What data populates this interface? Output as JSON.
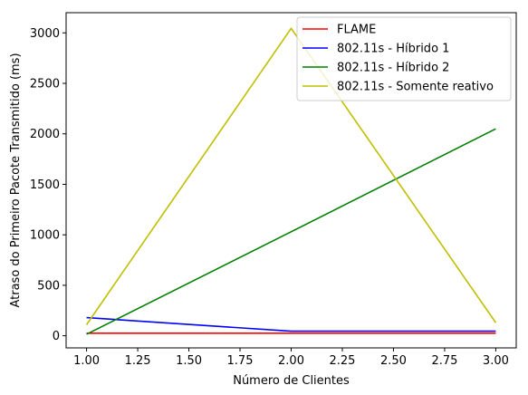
{
  "chart_data": {
    "type": "line",
    "xlabel": "Número de Clientes",
    "ylabel": "Atraso do Primeiro Pacote Transmitido (ms)",
    "xlim": [
      0.9,
      3.1
    ],
    "ylim": [
      -120,
      3200
    ],
    "x_ticks": [
      1.0,
      1.25,
      1.5,
      1.75,
      2.0,
      2.25,
      2.5,
      2.75,
      3.0
    ],
    "x_tick_labels": [
      "1.00",
      "1.25",
      "1.50",
      "1.75",
      "2.00",
      "2.25",
      "2.50",
      "2.75",
      "3.00"
    ],
    "y_ticks": [
      0,
      500,
      1000,
      1500,
      2000,
      2500,
      3000
    ],
    "y_tick_labels": [
      "0",
      "500",
      "1000",
      "1500",
      "2000",
      "2500",
      "3000"
    ],
    "grid": false,
    "legend_position": "top-right",
    "series": [
      {
        "name": "FLAME",
        "color": "#ff0000",
        "x": [
          1,
          2,
          3
        ],
        "y": [
          25,
          25,
          25
        ]
      },
      {
        "name": "802.11s - Híbrido 1",
        "color": "#0000ff",
        "x": [
          1,
          2,
          3
        ],
        "y": [
          180,
          45,
          45
        ]
      },
      {
        "name": "802.11s - Híbrido 2",
        "color": "#008000",
        "x": [
          1,
          2,
          3
        ],
        "y": [
          15,
          1030,
          2050
        ]
      },
      {
        "name": "802.11s - Somente reativo",
        "color": "#bfbf00",
        "x": [
          1,
          2,
          3
        ],
        "y": [
          110,
          3045,
          130
        ]
      }
    ]
  }
}
